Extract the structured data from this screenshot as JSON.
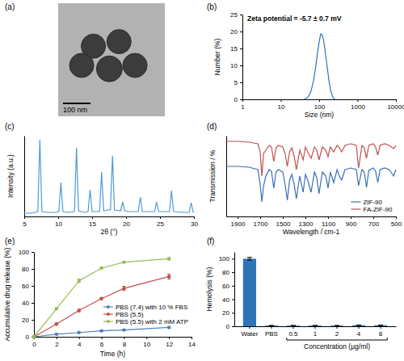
{
  "chart_data": [
    {
      "type": "image",
      "label": "(a)",
      "scale_bar": "100 nm"
    },
    {
      "type": "line",
      "label": "(b)",
      "annotation": "Zeta potential = -5.7 ± 0.7 mV",
      "x_label": "Size (nm)",
      "y_label": "Number (%)",
      "log": "x",
      "xlim": [
        1,
        10000
      ],
      "xticks": [
        1,
        10,
        100,
        1000,
        10000
      ],
      "ylim": [
        0,
        25
      ],
      "yticks": [
        0,
        5,
        10,
        15,
        20,
        25
      ],
      "series": [
        {
          "color": "#2e75b6",
          "x": [
            40,
            50,
            60,
            70,
            80,
            90,
            100,
            110,
            120,
            130,
            140,
            160,
            180,
            200,
            230,
            260
          ],
          "values": [
            0,
            0.5,
            2,
            5,
            9,
            13.5,
            17,
            19.3,
            19,
            17.5,
            15,
            10,
            5.5,
            2.5,
            0.5,
            0
          ]
        }
      ]
    },
    {
      "type": "line",
      "label": "(c)",
      "x_label": "2θ (°)",
      "y_label": "Intensity (a.u.)",
      "xlim": [
        5,
        30
      ],
      "xticks": [
        5,
        10,
        15,
        20,
        25,
        30
      ],
      "ylim": [
        0,
        1
      ],
      "tick_labels": "x",
      "series": [
        {
          "color": "#4f9bd9",
          "x": [
            5,
            6,
            7,
            7.3,
            7.6,
            8.5,
            9.5,
            10.1,
            10.4,
            10.7,
            11.5,
            12.4,
            12.7,
            13,
            14,
            14.4,
            14.7,
            15,
            15.8,
            16.1,
            16.4,
            16.7,
            17.2,
            17.7,
            18,
            18.3,
            19.2,
            19.5,
            19.8,
            20.5,
            21.8,
            22.1,
            22.4,
            23.5,
            24.2,
            24.5,
            24.8,
            25.5,
            26.4,
            26.7,
            27,
            28.5,
            29.3,
            29.6,
            29.9,
            30
          ],
          "values": [
            0.04,
            0.04,
            0.06,
            0.95,
            0.06,
            0.05,
            0.05,
            0.06,
            0.42,
            0.06,
            0.05,
            0.06,
            0.85,
            0.07,
            0.05,
            0.06,
            0.33,
            0.06,
            0.06,
            0.06,
            0.55,
            0.07,
            0.08,
            0.08,
            0.75,
            0.08,
            0.07,
            0.18,
            0.07,
            0.06,
            0.06,
            0.24,
            0.06,
            0.06,
            0.06,
            0.18,
            0.06,
            0.06,
            0.06,
            0.32,
            0.06,
            0.05,
            0.05,
            0.17,
            0.05,
            0.05
          ]
        }
      ]
    },
    {
      "type": "line",
      "label": "(d)",
      "x_label": "Wavelength / cm-1",
      "y_label": "Transmission / %",
      "xlim": [
        2000,
        500
      ],
      "xticks": [
        1900,
        1700,
        1500,
        1300,
        1100,
        900,
        700,
        500
      ],
      "ylim": [
        0,
        1
      ],
      "tick_labels": "x",
      "legend": "lower right",
      "x": [
        2000,
        1900,
        1800,
        1720,
        1700,
        1685,
        1670,
        1650,
        1620,
        1600,
        1580,
        1560,
        1540,
        1500,
        1480,
        1460,
        1440,
        1420,
        1400,
        1380,
        1350,
        1320,
        1300,
        1280,
        1250,
        1220,
        1200,
        1180,
        1150,
        1120,
        1100,
        1080,
        1050,
        1020,
        1000,
        980,
        950,
        900,
        850,
        830,
        800,
        780,
        760,
        740,
        700,
        680,
        660,
        640,
        600,
        560,
        520,
        500
      ],
      "series": [
        {
          "name": "ZIF-90",
          "color": "#3a6fb5",
          "values": [
            0.62,
            0.62,
            0.61,
            0.58,
            0.4,
            0.18,
            0.38,
            0.5,
            0.58,
            0.56,
            0.35,
            0.55,
            0.58,
            0.55,
            0.4,
            0.2,
            0.45,
            0.52,
            0.4,
            0.22,
            0.5,
            0.3,
            0.52,
            0.45,
            0.3,
            0.55,
            0.48,
            0.28,
            0.55,
            0.5,
            0.35,
            0.55,
            0.42,
            0.58,
            0.5,
            0.45,
            0.58,
            0.6,
            0.58,
            0.38,
            0.58,
            0.55,
            0.36,
            0.57,
            0.6,
            0.56,
            0.42,
            0.58,
            0.6,
            0.58,
            0.5,
            0.58
          ]
        },
        {
          "name": "FA-ZIF-90",
          "color": "#c0504d",
          "values": [
            0.93,
            0.93,
            0.92,
            0.9,
            0.8,
            0.5,
            0.78,
            0.82,
            0.88,
            0.86,
            0.68,
            0.85,
            0.88,
            0.86,
            0.78,
            0.62,
            0.8,
            0.85,
            0.75,
            0.58,
            0.82,
            0.7,
            0.86,
            0.8,
            0.72,
            0.86,
            0.82,
            0.7,
            0.86,
            0.82,
            0.74,
            0.86,
            0.8,
            0.88,
            0.85,
            0.8,
            0.88,
            0.9,
            0.88,
            0.6,
            0.88,
            0.85,
            0.72,
            0.88,
            0.9,
            0.86,
            0.76,
            0.88,
            0.9,
            0.88,
            0.84,
            0.88
          ]
        }
      ]
    },
    {
      "type": "line",
      "label": "(e)",
      "x_label": "Time (h)",
      "y_label": "Accumulative drug release (%)",
      "xlim": [
        0,
        14
      ],
      "xticks": [
        0,
        2,
        4,
        6,
        8,
        10,
        12,
        14
      ],
      "ylim": [
        0,
        100
      ],
      "yticks": [
        0,
        20,
        40,
        60,
        80,
        100
      ],
      "legend": "lower right",
      "x": [
        0,
        2,
        4,
        6,
        8,
        12
      ],
      "series": [
        {
          "name": "PBS (7.4) with 10 % FBS",
          "color": "#4f81bd",
          "marker": "circle",
          "values": [
            0,
            3,
            5,
            7,
            8,
            11
          ],
          "errors": [
            0,
            0.5,
            0.5,
            0.5,
            0.5,
            0.5
          ]
        },
        {
          "name": "PBS (5.5)",
          "color": "#c0504d",
          "marker": "circle",
          "values": [
            0,
            15,
            31,
            45,
            57,
            71
          ],
          "errors": [
            0,
            1,
            1.5,
            1,
            2.5,
            3
          ]
        },
        {
          "name": "PBS (5.5) with 2 mM ATP",
          "color": "#9bbb59",
          "marker": "circle",
          "values": [
            0,
            33,
            66,
            81,
            88,
            92
          ],
          "errors": [
            0,
            1,
            2,
            1,
            1,
            1.5
          ]
        }
      ]
    },
    {
      "type": "bar",
      "label": "(f)",
      "y_label": "Hemolysis (%)",
      "annotation": "Concentration (μg/ml)",
      "categories": [
        "Water",
        "PBS",
        "0.5",
        "1",
        "2",
        "4",
        "8"
      ],
      "values": [
        100,
        1,
        1,
        1,
        1,
        1.5,
        1.5
      ],
      "errors": [
        2,
        0.2,
        0.2,
        0.2,
        0.2,
        0.3,
        0.3
      ],
      "color": "#2f75b5",
      "ylim": [
        0,
        110
      ],
      "yticks": [
        0,
        20,
        40,
        60,
        80,
        100
      ]
    }
  ]
}
